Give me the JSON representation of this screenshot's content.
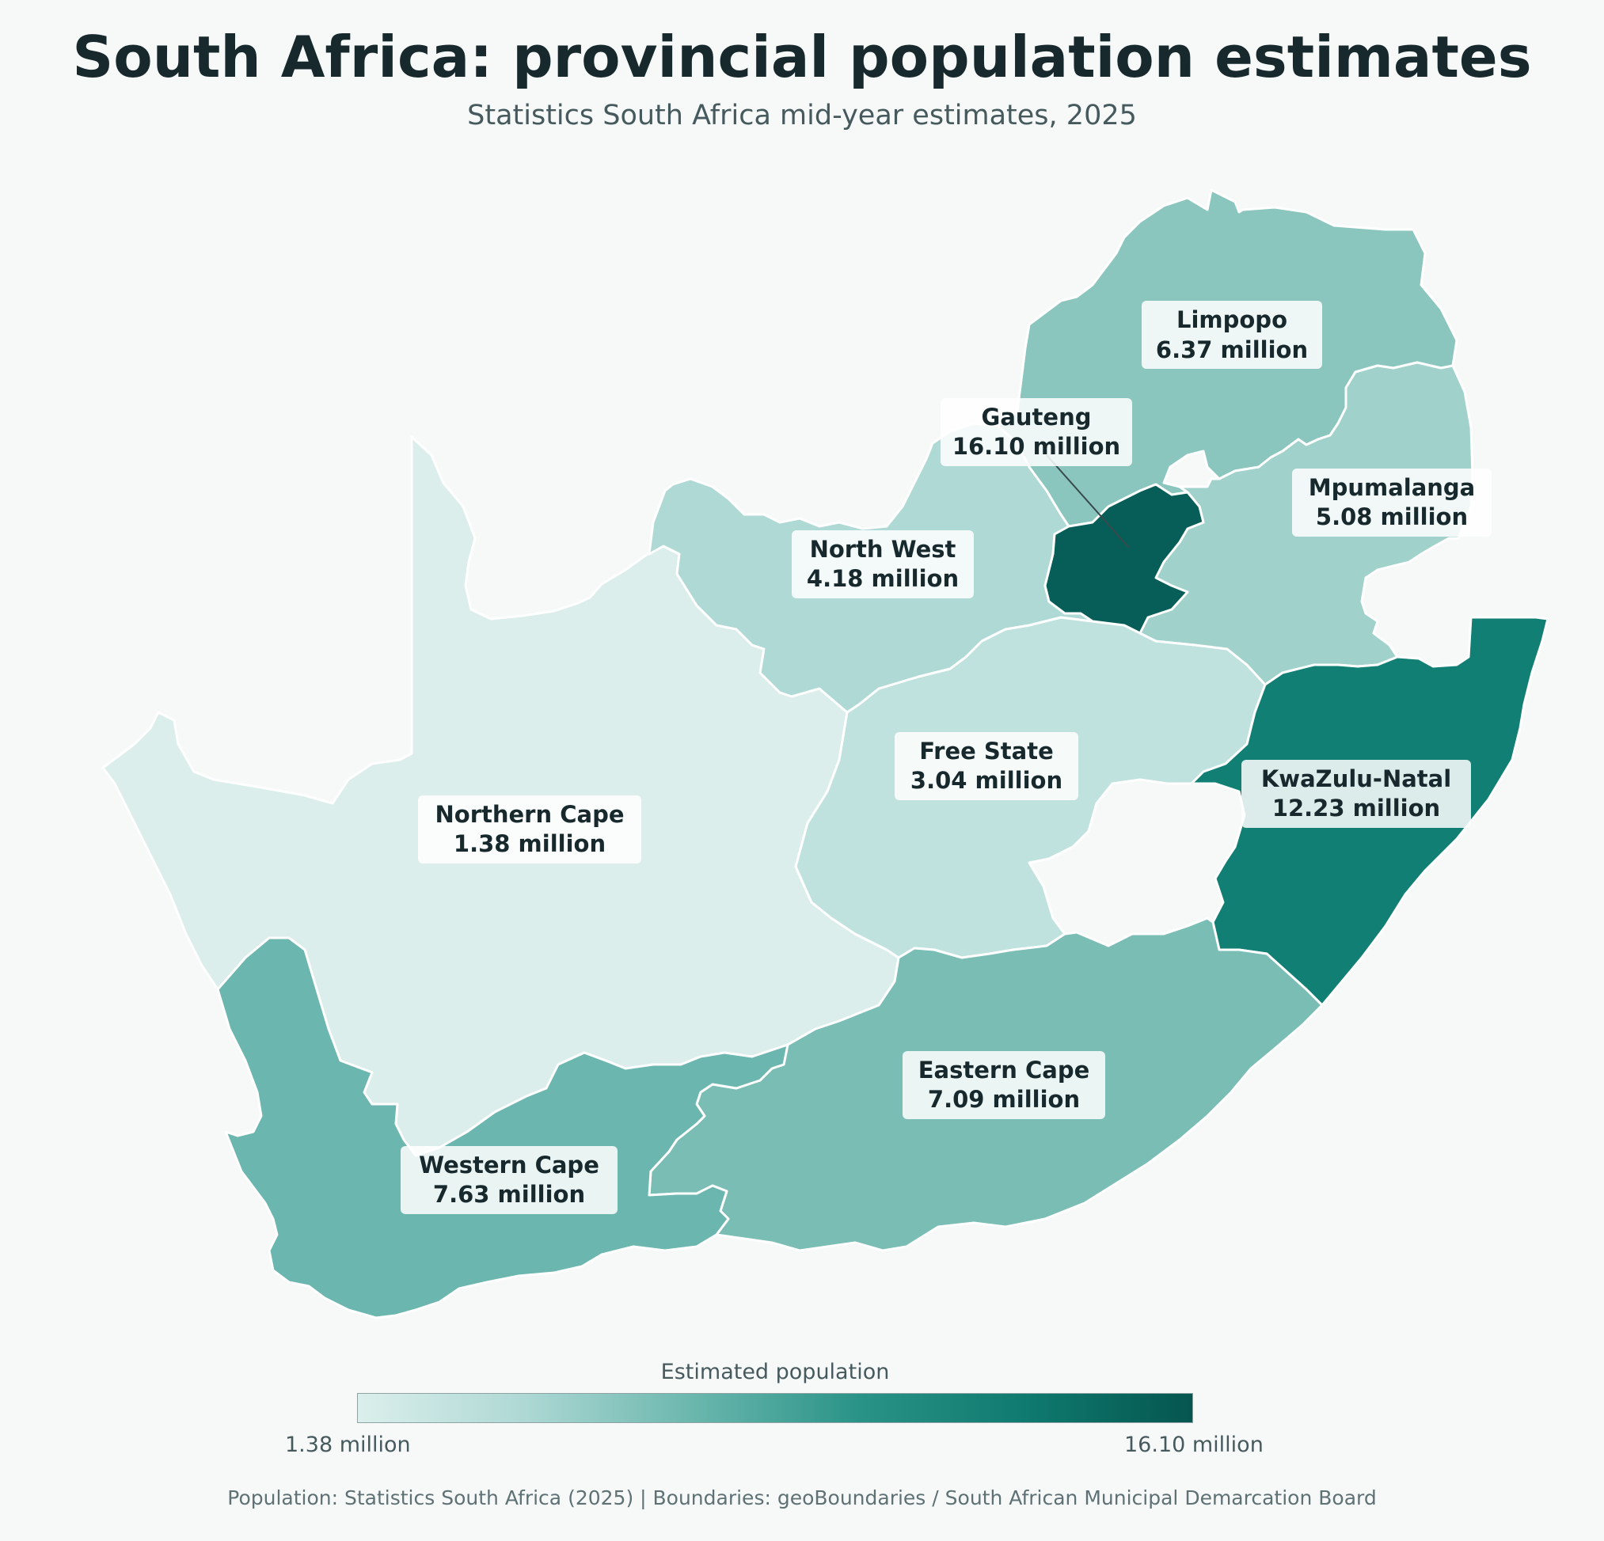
{
  "title": "South Africa: provincial population estimates",
  "subtitle": "Statistics South Africa mid-year estimates, 2025",
  "legend": {
    "title": "Estimated population",
    "min_label": "1.38 million",
    "max_label": "16.10 million",
    "color_low": "#dbefec",
    "color_high": "#05564f"
  },
  "source": "Population: Statistics South Africa (2025)  |  Boundaries: geoBoundaries / South African Municipal Demarcation Board",
  "provinces": [
    {
      "id": "northern-cape",
      "name": "Northern Cape",
      "value": "1.38 million",
      "population_millions": 1.38,
      "color": "#dbeeeb"
    },
    {
      "id": "free-state",
      "name": "Free State",
      "value": "3.04 million",
      "population_millions": 3.04,
      "color": "#c0e2df"
    },
    {
      "id": "north-west",
      "name": "North West",
      "value": "4.18 million",
      "population_millions": 4.18,
      "color": "#afd9d5"
    },
    {
      "id": "mpumalanga",
      "name": "Mpumalanga",
      "value": "5.08 million",
      "population_millions": 5.08,
      "color": "#a0d1cb"
    },
    {
      "id": "limpopo",
      "name": "Limpopo",
      "value": "6.37 million",
      "population_millions": 6.37,
      "color": "#8ac5be"
    },
    {
      "id": "eastern-cape",
      "name": "Eastern Cape",
      "value": "7.09 million",
      "population_millions": 7.09,
      "color": "#79bdb5"
    },
    {
      "id": "western-cape",
      "name": "Western Cape",
      "value": "7.63 million",
      "population_millions": 7.63,
      "color": "#6bb6ae"
    },
    {
      "id": "kwazulu-natal",
      "name": "KwaZulu-Natal",
      "value": "12.23 million",
      "population_millions": 12.23,
      "color": "#127f75"
    },
    {
      "id": "gauteng",
      "name": "Gauteng",
      "value": "16.10 million",
      "population_millions": 16.1,
      "color": "#075e58"
    }
  ]
}
